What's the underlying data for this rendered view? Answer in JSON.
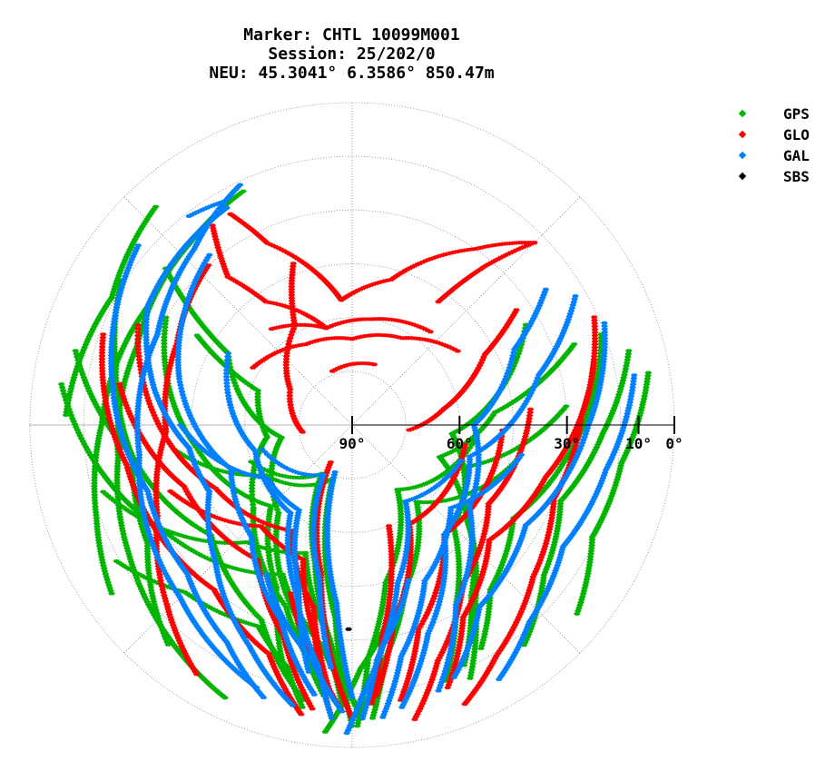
{
  "header": {
    "marker_line": "Marker: CHTL 10099M001",
    "session_line": "Session: 25/202/0",
    "neu_line": "NEU: 45.3041° 6.3586° 850.47m"
  },
  "legend": [
    {
      "label": "GPS",
      "color": "#00b400"
    },
    {
      "label": "GLO",
      "color": "#ff0000"
    },
    {
      "label": "GAL",
      "color": "#0080ff"
    },
    {
      "label": "SBS",
      "color": "#000000"
    }
  ],
  "chart_data": {
    "type": "scatter",
    "projection": "polar-skyplot",
    "title": "Marker: CHTL 10099M001 / Session: 25/202/0 / NEU: 45.3041° 6.3586° 850.47m",
    "radial_axis": {
      "quantity": "elevation",
      "unit": "deg",
      "range": [
        0,
        90
      ],
      "ticks": [
        90,
        60,
        30,
        10,
        0
      ],
      "tick_labels": [
        "90°",
        "60°",
        "30°",
        "10°",
        "0°"
      ]
    },
    "angular_axis": {
      "quantity": "azimuth",
      "unit": "deg",
      "range": [
        0,
        360
      ],
      "zero": "north",
      "direction": "clockwise"
    },
    "grid": true,
    "legend_position": "top-right",
    "series": [
      {
        "name": "GPS",
        "color": "#00b400",
        "tracks": [
          {
            "az": [
              335,
              318,
              290,
              262,
              240,
              222,
              205
            ],
            "el": [
              18,
              22,
              26,
              24,
              18,
              12,
              6
            ]
          },
          {
            "az": [
              302,
              284,
              262,
              240,
              220
            ],
            "el": [
              14,
              22,
              28,
              24,
              10
            ]
          },
          {
            "az": [
              285,
              262,
              232,
              205,
              190
            ],
            "el": [
              10,
              28,
              40,
              30,
              12
            ]
          },
          {
            "az": [
              278,
              240,
              205,
              188,
              178
            ],
            "el": [
              8,
              30,
              44,
              28,
              10
            ]
          },
          {
            "az": [
              255,
              222,
              200,
              186,
              178
            ],
            "el": [
              18,
              46,
              52,
              30,
              8
            ]
          },
          {
            "az": [
              300,
              262,
              225,
              205,
              195
            ],
            "el": [
              30,
              46,
              58,
              40,
              18
            ]
          },
          {
            "az": [
              262,
              240,
              200,
              185,
              180
            ],
            "el": [
              40,
              62,
              74,
              36,
              6
            ]
          },
          {
            "az": [
              310,
              300,
              260,
              220,
              196,
              186
            ],
            "el": [
              22,
              50,
              70,
              58,
              34,
              14
            ]
          },
          {
            "az": [
              70,
              85,
              110,
              130,
              145,
              155
            ],
            "el": [
              24,
              50,
              64,
              48,
              30,
              12
            ]
          },
          {
            "az": [
              85,
              110,
              135,
              150,
              160
            ],
            "el": [
              30,
              56,
              50,
              32,
              14
            ]
          },
          {
            "az": [
              60,
              95,
              125,
              145,
              155
            ],
            "el": [
              34,
              62,
              52,
              32,
              16
            ]
          },
          {
            "az": [
              100,
              140,
              162,
              172,
              176
            ],
            "el": [
              42,
              62,
              42,
              24,
              8
            ]
          },
          {
            "az": [
              95,
              145,
              168,
              176,
              179
            ],
            "el": [
              55,
              68,
              45,
              25,
              6
            ]
          },
          {
            "az": [
              70,
              100,
              120,
              140,
              150
            ],
            "el": [
              16,
              30,
              38,
              30,
              18
            ]
          },
          {
            "az": [
              75,
              92,
              110,
              128,
              142
            ],
            "el": [
              10,
              20,
              28,
              22,
              12
            ]
          },
          {
            "az": [
              80,
              98,
              115,
              130
            ],
            "el": [
              6,
              14,
              16,
              8
            ]
          },
          {
            "az": [
              300,
              290,
              262,
              230,
              200,
              188
            ],
            "el": [
              40,
              62,
              66,
              54,
              36,
              20
            ]
          },
          {
            "az": [
              250,
              212,
              195,
              186,
              182
            ],
            "el": [
              60,
              74,
              50,
              30,
              12
            ]
          },
          {
            "az": [
              240,
              225,
              205,
              195,
              190
            ],
            "el": [
              14,
              24,
              28,
              20,
              10
            ]
          },
          {
            "az": [
              330,
              300,
              270,
              250,
              235
            ],
            "el": [
              20,
              24,
              20,
              14,
              8
            ]
          },
          {
            "az": [
              318,
              298,
              272
            ],
            "el": [
              8,
              14,
              10
            ]
          },
          {
            "az": [
              170,
              178,
              182,
              185
            ],
            "el": [
              34,
              22,
              12,
              4
            ]
          }
        ]
      },
      {
        "name": "GLO",
        "color": "#ff0000",
        "tracks": [
          {
            "az": [
              330,
              335,
              355,
              15,
              35,
              45
            ],
            "el": [
              22,
              34,
              55,
              48,
              30,
              18
            ]
          },
          {
            "az": [
              325,
              320,
              325,
              345
            ],
            "el": [
              22,
              36,
              48,
              62
            ]
          },
          {
            "az": [
              35,
              40,
              45
            ],
            "el": [
              48,
              32,
              18
            ]
          },
          {
            "az": [
              340,
              330,
              300,
              262
            ],
            "el": [
              42,
              58,
              70,
              76
            ]
          },
          {
            "az": [
              55,
              62,
              80,
              95
            ],
            "el": [
              34,
              48,
              64,
              74
            ]
          },
          {
            "az": [
              300,
              330,
              0,
              30,
              55
            ],
            "el": [
              58,
              64,
              66,
              62,
              54
            ]
          },
          {
            "az": [
              320,
              345,
              10,
              40
            ],
            "el": [
              55,
              62,
              60,
              56
            ]
          },
          {
            "az": [
              290,
              260,
              220,
              200,
              190
            ],
            "el": [
              16,
              26,
              30,
              22,
              8
            ]
          },
          {
            "az": [
              280,
              250,
              215,
              198,
              188
            ],
            "el": [
              24,
              40,
              44,
              28,
              10
            ]
          },
          {
            "az": [
              250,
              222,
              200,
              190,
              184
            ],
            "el": [
              36,
              52,
              50,
              30,
              8
            ]
          },
          {
            "az": [
              295,
              245,
              210,
              192,
              185
            ],
            "el": [
              24,
              48,
              56,
              38,
              16
            ]
          },
          {
            "az": [
              85,
              120,
              145,
              160,
              168
            ],
            "el": [
              40,
              46,
              36,
              20,
              6
            ]
          },
          {
            "az": [
              92,
              140,
              162,
              170
            ],
            "el": [
              48,
              50,
              30,
              12
            ]
          },
          {
            "az": [
              100,
              150,
              168,
              175
            ],
            "el": [
              58,
              58,
              34,
              14
            ]
          },
          {
            "az": [
              75,
              105,
              130,
              150,
              160
            ],
            "el": [
              20,
              34,
              40,
              28,
              12
            ]
          },
          {
            "az": [
              210,
              192,
              185,
              180
            ],
            "el": [
              78,
              48,
              24,
              8
            ]
          },
          {
            "az": [
              160,
              172,
              176
            ],
            "el": [
              60,
              30,
              12
            ]
          },
          {
            "az": [
              318,
              295,
              268,
              245,
              226,
              212
            ],
            "el": [
              30,
              36,
              38,
              30,
              18,
              8
            ]
          },
          {
            "az": [
              66,
              88,
              110,
              130,
              148,
              158
            ],
            "el": [
              16,
              26,
              30,
              24,
              14,
              6
            ]
          },
          {
            "az": [
              200,
              188,
              182
            ],
            "el": [
              40,
              22,
              10
            ]
          },
          {
            "az": [
              340,
              20
            ],
            "el": [
              74,
              72
            ]
          }
        ]
      },
      {
        "name": "GAL",
        "color": "#0080ff",
        "tracks": [
          {
            "az": [
              330,
              300,
              280,
              262,
              245,
              225,
              205,
              192
            ],
            "el": [
              20,
              24,
              34,
              44,
              46,
              36,
              22,
              10
            ]
          },
          {
            "az": [
              320,
              285,
              250,
              222,
              200,
              188
            ],
            "el": [
              28,
              40,
              54,
              48,
              32,
              14
            ]
          },
          {
            "az": [
              300,
              255,
              215,
              198,
              188,
              184
            ],
            "el": [
              50,
              62,
              60,
              40,
              22,
              8
            ]
          },
          {
            "az": [
              335,
              318,
              295,
              262,
              225,
              200
            ],
            "el": [
              16,
              24,
              30,
              30,
              22,
              12
            ]
          },
          {
            "az": [
              310,
              280,
              252,
              228,
              210,
              198
            ],
            "el": [
              12,
              22,
              30,
              28,
              20,
              10
            ]
          },
          {
            "az": [
              270,
              238,
              212,
              198,
              190
            ],
            "el": [
              42,
              62,
              62,
              42,
              20
            ]
          },
          {
            "az": [
              255,
              210,
              192,
              185
            ],
            "el": [
              64,
              74,
              46,
              22
            ]
          },
          {
            "az": [
              330,
              322
            ],
            "el": [
              18,
              16
            ]
          },
          {
            "az": [
              55,
              65,
              90,
              125,
              150,
              162
            ],
            "el": [
              24,
              40,
              56,
              50,
              32,
              12
            ]
          },
          {
            "az": [
              60,
              75,
              105,
              140,
              160,
              170
            ],
            "el": [
              18,
              36,
              56,
              50,
              28,
              10
            ]
          },
          {
            "az": [
              68,
              90,
              120,
              145,
              158
            ],
            "el": [
              14,
              24,
              34,
              28,
              14
            ]
          },
          {
            "az": [
              100,
              130,
              155,
              168,
              174
            ],
            "el": [
              42,
              54,
              42,
              24,
              8
            ]
          },
          {
            "az": [
              108,
              145,
              164,
              174,
              178
            ],
            "el": [
              58,
              64,
              44,
              24,
              8
            ]
          },
          {
            "az": [
              80,
              100,
              120,
              138,
              150
            ],
            "el": [
              10,
              18,
              22,
              16,
              8
            ]
          },
          {
            "az": [
              210,
              190,
              182
            ],
            "el": [
              42,
              24,
              10
            ]
          },
          {
            "az": [
              160,
              172,
              178,
              181
            ],
            "el": [
              44,
              28,
              14,
              4
            ]
          },
          {
            "az": [
              200,
              185,
              180
            ],
            "el": [
              76,
              40,
              14
            ]
          }
        ]
      },
      {
        "name": "SBS",
        "color": "#000000",
        "tracks": [
          {
            "az": [
              181
            ],
            "el": [
              33
            ]
          }
        ]
      }
    ]
  }
}
